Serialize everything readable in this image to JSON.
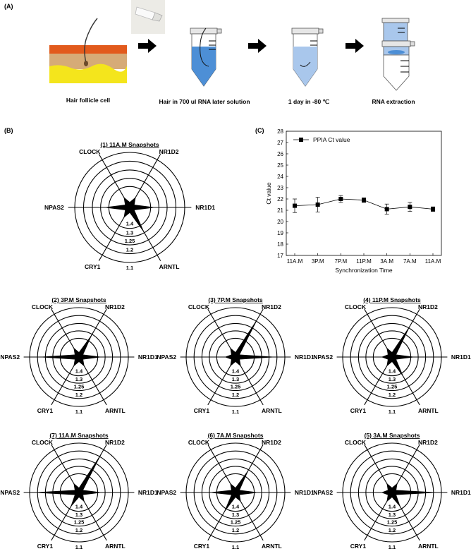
{
  "panel_a": {
    "label": "(A)",
    "steps": [
      {
        "caption": "Hair follicle cell"
      },
      {
        "caption": "Hair in 700 ul RNA later solution"
      },
      {
        "caption": "1 day in -80 ℃"
      },
      {
        "caption": "RNA extraction"
      }
    ]
  },
  "panel_b": {
    "label": "(B)"
  },
  "panel_c": {
    "label": "(C)"
  },
  "radar_common": {
    "genes": [
      "NR1D1",
      "NR1D2",
      "CLOCK",
      "NPAS2",
      "CRY1",
      "ARNTL"
    ],
    "ring_labels": [
      "1.4",
      "1.3",
      "1.25",
      "1.2",
      "1.1"
    ]
  },
  "chart_data": [
    {
      "type": "line",
      "title": "",
      "legend": "PPIA Ct value",
      "legend_position": "top-left",
      "xlabel": "Synchronization Time",
      "ylabel": "Ct value",
      "categories": [
        "11A.M",
        "3P.M",
        "7P.M",
        "11P.M",
        "3A.M",
        "7A.M",
        "11A.M"
      ],
      "values": [
        21.4,
        21.5,
        22.0,
        21.9,
        21.1,
        21.3,
        21.1
      ],
      "errors": [
        0.6,
        0.65,
        0.3,
        0.2,
        0.45,
        0.4,
        0.2
      ],
      "ylim": [
        17,
        28
      ],
      "yticks": [
        "17",
        "18",
        "19",
        "20",
        "21",
        "22",
        "23",
        "24",
        "25",
        "26",
        "27",
        "28"
      ]
    },
    {
      "type": "radar",
      "title": "(1) 11A.M Snapshots",
      "values": {
        "NR1D1": 0.48,
        "NR1D2": 0.22,
        "CLOCK": 0.22,
        "NPAS2": 0.48,
        "CRY1": 0.22,
        "ARNTL": 0.55
      }
    },
    {
      "type": "radar",
      "title": "(2) 3P.M Snapshots",
      "values": {
        "NR1D1": 0.48,
        "NR1D2": 0.55,
        "CLOCK": 0.22,
        "NPAS2": 0.85,
        "CRY1": 0.22,
        "ARNTL": 0.22
      }
    },
    {
      "type": "radar",
      "title": "(3) 7P.M Snapshots",
      "values": {
        "NR1D1": 0.85,
        "NR1D2": 0.97,
        "CLOCK": 0.22,
        "NPAS2": 0.22,
        "CRY1": 0.22,
        "ARNTL": 0.22
      }
    },
    {
      "type": "radar",
      "title": "(4) 11P.M Snapshots",
      "values": {
        "NR1D1": 0.48,
        "NR1D2": 0.78,
        "CLOCK": 0.22,
        "NPAS2": 0.22,
        "CRY1": 0.22,
        "ARNTL": 0.48
      }
    },
    {
      "type": "radar",
      "title": "(7) 11A.M Snapshots",
      "values": {
        "NR1D1": 0.48,
        "NR1D2": 0.97,
        "CLOCK": 0.22,
        "NPAS2": 0.97,
        "CRY1": 0.35,
        "ARNTL": 0.22
      }
    },
    {
      "type": "radar",
      "title": "(6) 7A.M Snapshots",
      "values": {
        "NR1D1": 0.48,
        "NR1D2": 0.55,
        "CLOCK": 0.22,
        "NPAS2": 0.55,
        "CRY1": 0.48,
        "ARNTL": 0.22
      }
    },
    {
      "type": "radar",
      "title": "(5) 3A.M Snapshots",
      "values": {
        "NR1D1": 0.97,
        "NR1D2": 0.22,
        "CLOCK": 0.22,
        "NPAS2": 0.22,
        "CRY1": 0.22,
        "ARNTL": 0.35
      }
    }
  ]
}
